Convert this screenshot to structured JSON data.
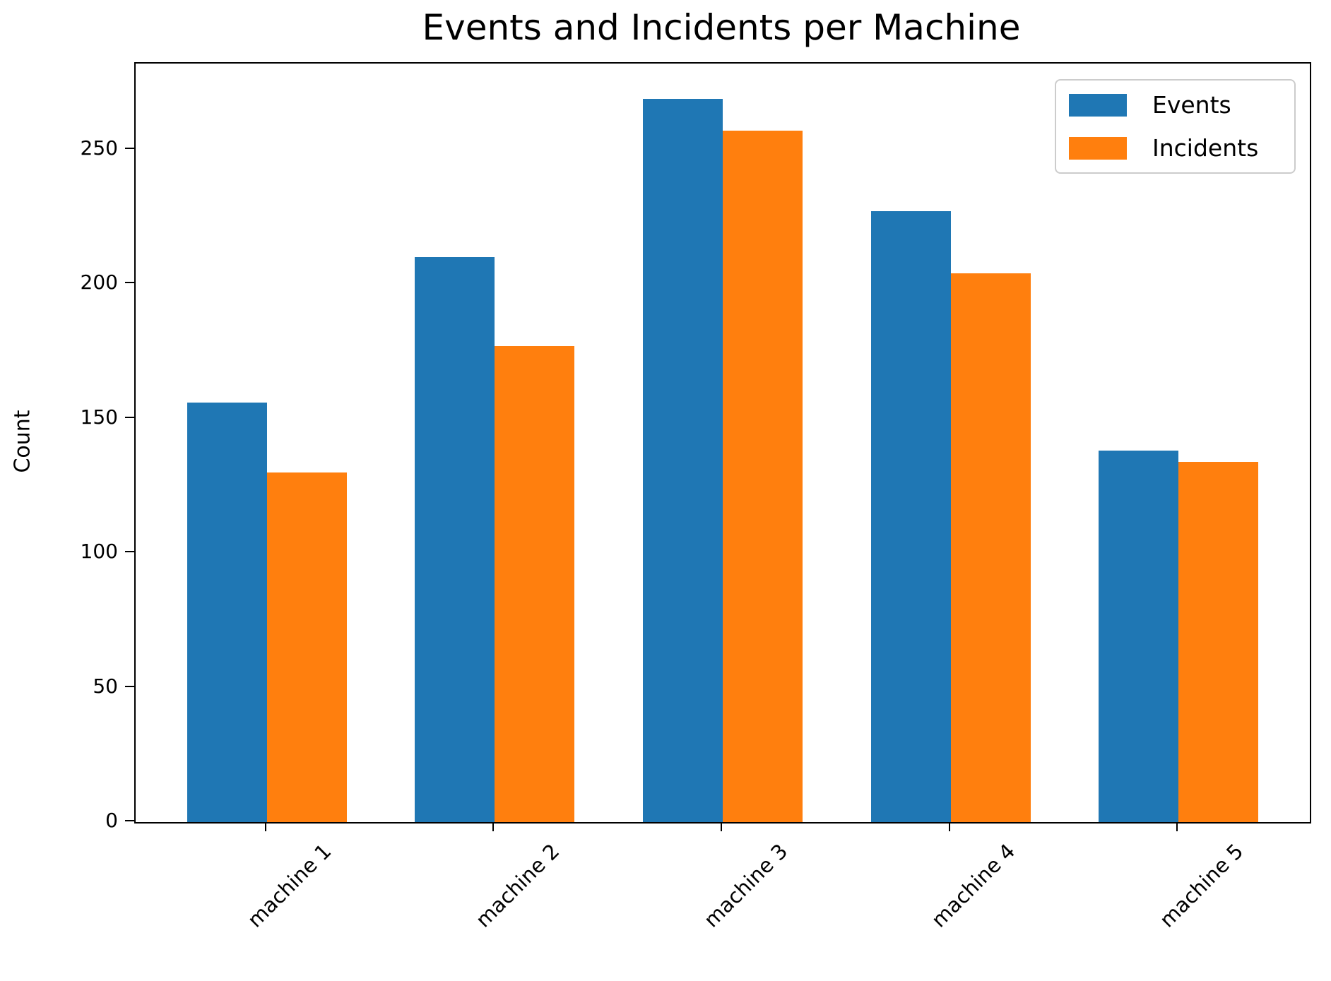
{
  "title": "Events and Incidents per Machine",
  "chart_data": {
    "type": "bar",
    "title": "Events and Incidents per Machine",
    "xlabel": "",
    "ylabel": "Count",
    "categories": [
      "machine 1",
      "machine 2",
      "machine 3",
      "machine 4",
      "machine 5"
    ],
    "series": [
      {
        "name": "Events",
        "color": "#1f77b4",
        "values": [
          156,
          210,
          269,
          227,
          138
        ]
      },
      {
        "name": "Incidents",
        "color": "#ff7f0e",
        "values": [
          130,
          177,
          257,
          204,
          134
        ]
      }
    ],
    "yticks": [
      0,
      50,
      100,
      150,
      200,
      250
    ],
    "ylim": [
      0,
      282
    ],
    "bar_width": 0.35,
    "grid": false,
    "legend_position": "upper right",
    "x_tick_rotation_deg": 45
  }
}
